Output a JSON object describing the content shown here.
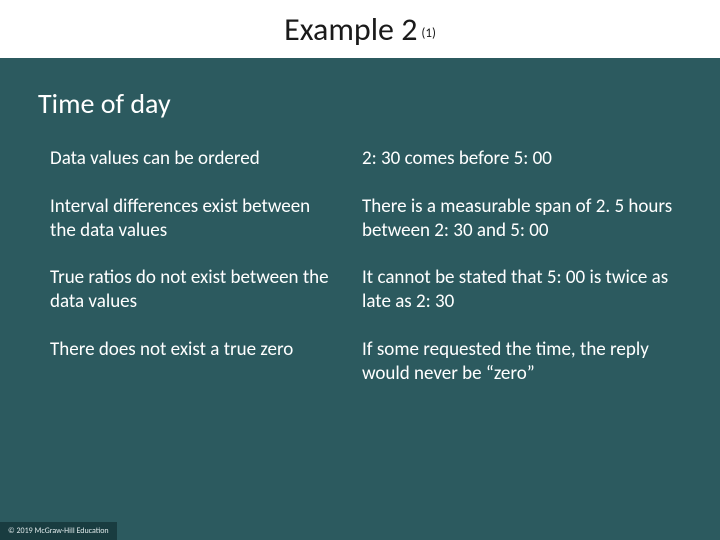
{
  "title": {
    "main": "Example 2",
    "sub": "(1)"
  },
  "heading": "Time of day",
  "left_column": [
    "Data values can be ordered",
    "Interval differences exist between the data values",
    "True ratios do not exist between the data values",
    "There does not exist a true zero"
  ],
  "right_column": [
    "2: 30 comes before 5: 00",
    "There is a measurable span of 2. 5 hours between 2: 30 and 5: 00",
    "It cannot be stated that 5: 00 is twice as late as 2: 30",
    "If some requested the time, the reply would never be “zero”"
  ],
  "footer": "© 2019 McGraw-Hill Education"
}
